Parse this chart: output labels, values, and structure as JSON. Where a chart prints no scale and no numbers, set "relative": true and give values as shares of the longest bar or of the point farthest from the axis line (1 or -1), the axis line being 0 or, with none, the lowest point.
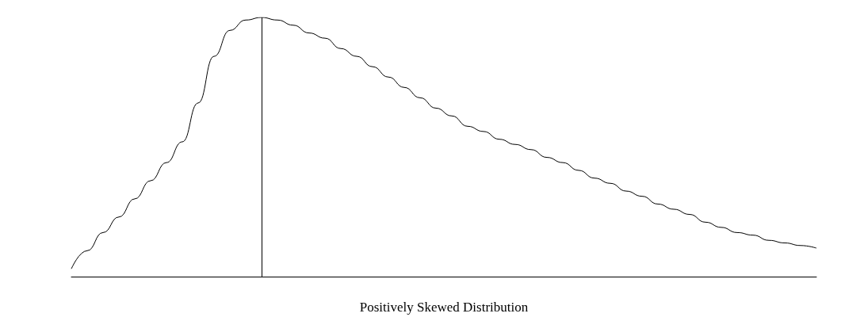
{
  "chart_data": {
    "type": "line",
    "relative": true,
    "xlabel": "Positively Skewed Distribution",
    "categories": [
      null,
      null,
      null,
      null,
      null,
      null,
      null,
      null,
      null,
      null,
      null,
      null,
      null,
      null,
      null,
      null,
      null,
      null,
      null,
      null,
      null,
      null,
      null,
      null,
      null,
      null,
      null,
      null,
      null,
      null,
      null,
      null,
      null,
      null,
      null,
      null,
      null,
      null,
      null,
      null,
      null,
      null,
      null,
      null,
      null,
      null,
      null,
      null
    ],
    "series": [
      {
        "color": "#000000",
        "values": [
          0.03,
          0.1,
          0.17,
          0.23,
          0.3,
          0.37,
          0.44,
          0.52,
          0.67,
          0.85,
          0.95,
          0.99,
          1.0,
          0.99,
          0.97,
          0.94,
          0.92,
          0.88,
          0.85,
          0.81,
          0.77,
          0.73,
          0.69,
          0.65,
          0.62,
          0.58,
          0.56,
          0.53,
          0.51,
          0.49,
          0.46,
          0.44,
          0.41,
          0.38,
          0.36,
          0.33,
          0.31,
          0.28,
          0.26,
          0.24,
          0.21,
          0.19,
          0.17,
          0.16,
          0.14,
          0.13,
          0.12,
          0.11
        ]
      }
    ],
    "marker": "none",
    "grid": false
  }
}
